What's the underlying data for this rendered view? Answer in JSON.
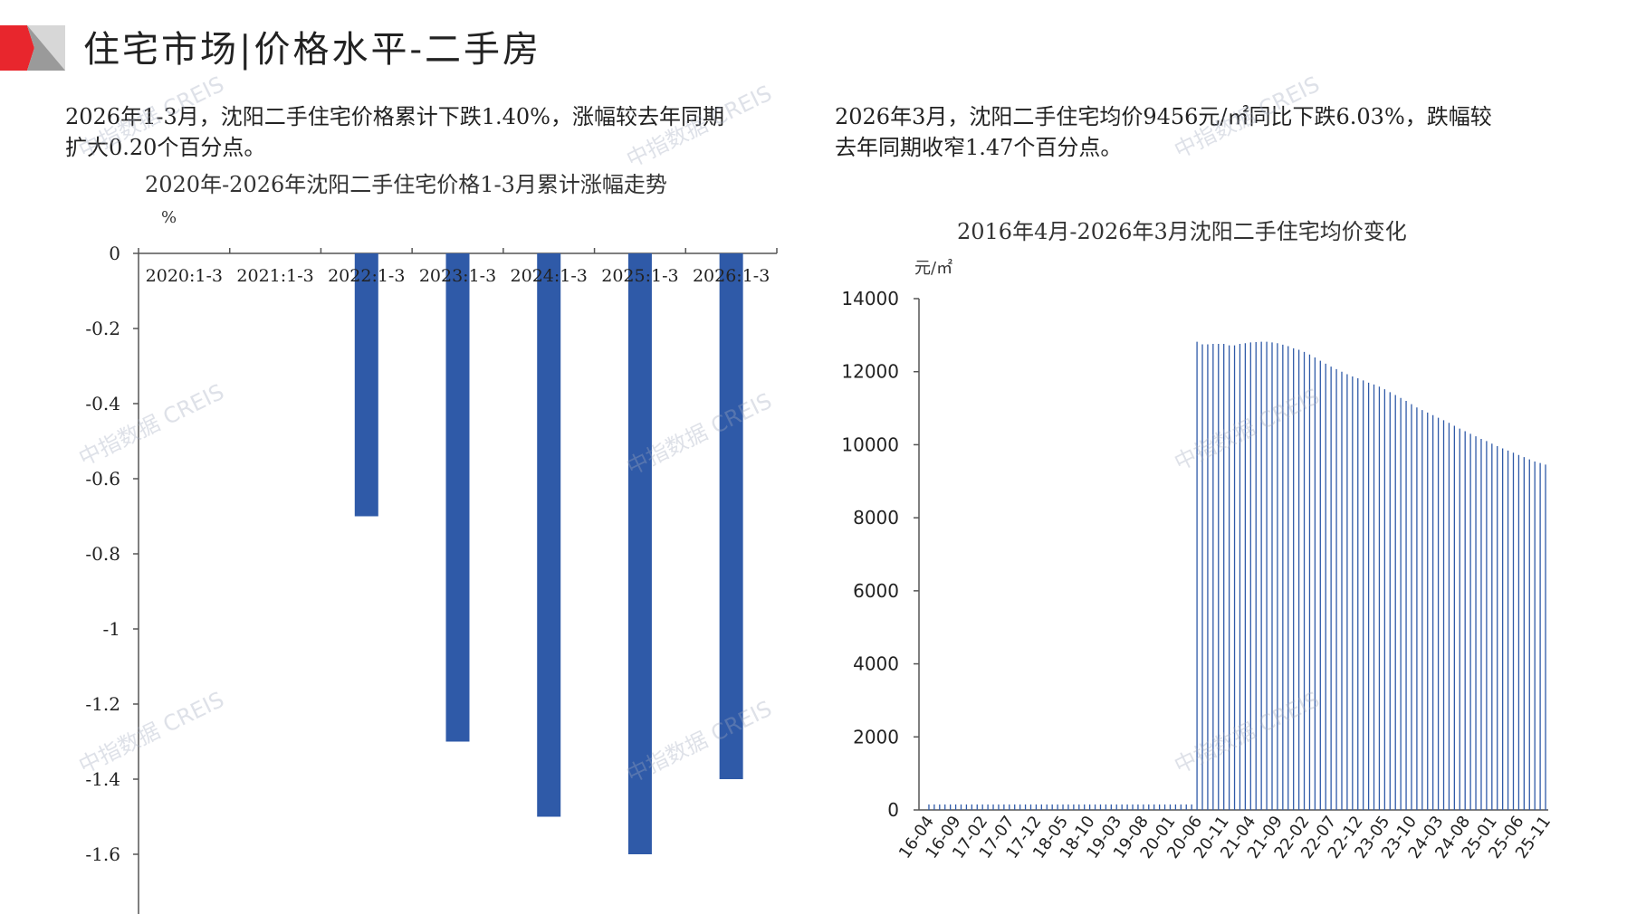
{
  "header": {
    "title": "住宅市场|价格水平-二手房",
    "accent_color": "#e8262d",
    "logo_gray": "#9a9a9a"
  },
  "summary_left": {
    "line1": "2026年1-3月，沈阳二手住宅价格累计下跌1.40%，涨幅较去年同期",
    "line2": "扩大0.20个百分点。"
  },
  "summary_right": {
    "line1": "2026年3月，沈阳二手住宅均价9456元/㎡同比下跌6.03%，跌幅较",
    "line2": "去年同期收窄1.47个百分点。"
  },
  "watermark": "中指数据 CREIS",
  "chart_data": [
    {
      "type": "bar",
      "title": "2020年-2026年沈阳二手住宅价格1-3月累计涨幅走势",
      "ylabel": "%",
      "categories": [
        "2020:1-3",
        "2021:1-3",
        "2022:1-3",
        "2023:1-3",
        "2024:1-3",
        "2025:1-3",
        "2026:1-3"
      ],
      "values": [
        0,
        0,
        -0.7,
        -1.3,
        -1.5,
        -1.6,
        -1.4
      ],
      "yticks": [
        "0",
        "-0.2",
        "-0.4",
        "-0.6",
        "-0.8",
        "-1",
        "-1.2",
        "-1.4",
        "-1.6"
      ],
      "ylim": [
        -1.8,
        0
      ],
      "color": "#2f5aa8"
    },
    {
      "type": "bar",
      "title": "2016年4月-2026年3月沈阳二手住宅均价变化",
      "ylabel": "元/㎡",
      "ylim": [
        0,
        14000
      ],
      "yticks": [
        "0",
        "2000",
        "4000",
        "6000",
        "8000",
        "10000",
        "12000",
        "14000"
      ],
      "xtick_labels": [
        "16-04",
        "16-09",
        "17-02",
        "17-07",
        "17-12",
        "18-05",
        "18-10",
        "19-03",
        "19-08",
        "20-01",
        "20-06",
        "20-11",
        "21-04",
        "21-09",
        "22-02",
        "22-07",
        "22-12",
        "23-05",
        "23-10",
        "24-03",
        "24-08",
        "25-01",
        "25-06",
        "25-11"
      ],
      "start_month": "2016-04",
      "color": "#2f5aa8",
      "values": [
        150,
        150,
        150,
        150,
        150,
        150,
        150,
        150,
        150,
        150,
        150,
        150,
        150,
        150,
        150,
        150,
        150,
        150,
        150,
        150,
        150,
        150,
        150,
        150,
        150,
        150,
        150,
        150,
        150,
        150,
        150,
        150,
        150,
        150,
        150,
        150,
        150,
        150,
        150,
        150,
        150,
        150,
        150,
        150,
        150,
        150,
        150,
        150,
        150,
        150,
        12820,
        12750,
        12750,
        12760,
        12760,
        12760,
        12720,
        12720,
        12760,
        12780,
        12800,
        12810,
        12820,
        12820,
        12800,
        12780,
        12740,
        12700,
        12640,
        12600,
        12540,
        12470,
        12390,
        12300,
        12220,
        12140,
        12070,
        12000,
        11930,
        11870,
        11820,
        11760,
        11700,
        11650,
        11590,
        11520,
        11440,
        11360,
        11280,
        11200,
        11110,
        11020,
        10950,
        10880,
        10810,
        10740,
        10670,
        10600,
        10520,
        10440,
        10370,
        10300,
        10230,
        10160,
        10100,
        10030,
        9960,
        9900,
        9840,
        9780,
        9720,
        9660,
        9600,
        9540,
        9500,
        9456
      ]
    }
  ]
}
